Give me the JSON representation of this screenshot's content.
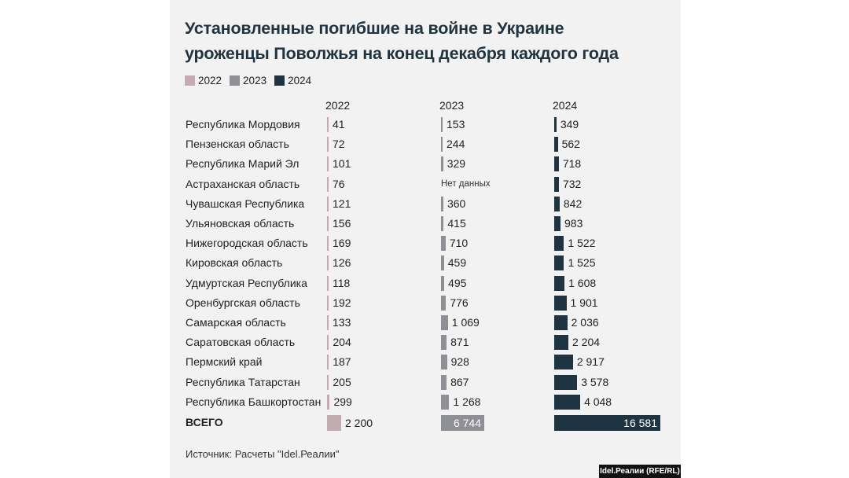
{
  "title_line1": "Установленные погибшие на войне в Украине",
  "title_line2": "уроженцы Поволжья на конец декабря каждого года",
  "legend": [
    {
      "label": "2022",
      "color": "#c4abb1"
    },
    {
      "label": "2023",
      "color": "#8f8f96"
    },
    {
      "label": "2024",
      "color": "#1e3442"
    }
  ],
  "source": "Источник: Расчеты \"Idel.Реалии\"",
  "credit": "Idel.Реалии (RFE/RL)",
  "chart_data": {
    "type": "bar",
    "title": "Установленные погибшие на войне в Украине уроженцы Поволжья на конец декабря каждого года",
    "categories": [
      "Республика Мордовия",
      "Пензенская область",
      "Республика Марий Эл",
      "Астраханская область",
      "Чувашская Республика",
      "Ульяновская область",
      "Нижегородская область",
      "Кировская область",
      "Удмуртская Республика",
      "Оренбургская область",
      "Самарская область",
      "Саратовская область",
      "Пермский край",
      "Республика Татарстан",
      "Республика Башкортостан"
    ],
    "series": [
      {
        "name": "2022",
        "values": [
          41,
          72,
          101,
          76,
          121,
          156,
          169,
          126,
          118,
          192,
          133,
          204,
          187,
          205,
          299
        ],
        "labels": [
          "41",
          "72",
          "101",
          "76",
          "121",
          "156",
          "169",
          "126",
          "118",
          "192",
          "133",
          "204",
          "187",
          "205",
          "299"
        ]
      },
      {
        "name": "2023",
        "values": [
          153,
          244,
          329,
          null,
          360,
          415,
          710,
          459,
          495,
          776,
          1069,
          871,
          928,
          867,
          1268
        ],
        "labels": [
          "153",
          "244",
          "329",
          "Нет данных",
          "360",
          "415",
          "710",
          "459",
          "495",
          "776",
          "1 069",
          "871",
          "928",
          "867",
          "1 268"
        ]
      },
      {
        "name": "2024",
        "values": [
          349,
          562,
          718,
          732,
          842,
          983,
          1522,
          1525,
          1608,
          1901,
          2036,
          2204,
          2917,
          3578,
          4048
        ],
        "labels": [
          "349",
          "562",
          "718",
          "732",
          "842",
          "983",
          "1 522",
          "1 525",
          "1 608",
          "1 901",
          "2 036",
          "2 204",
          "2 917",
          "3 578",
          "4 048"
        ]
      }
    ],
    "total": {
      "label": "ВСЕГО",
      "values": [
        2200,
        6744,
        16581
      ],
      "labels": [
        "2 200",
        "6 744",
        "16 581"
      ]
    },
    "grid": false,
    "legend_position": "top-left"
  }
}
